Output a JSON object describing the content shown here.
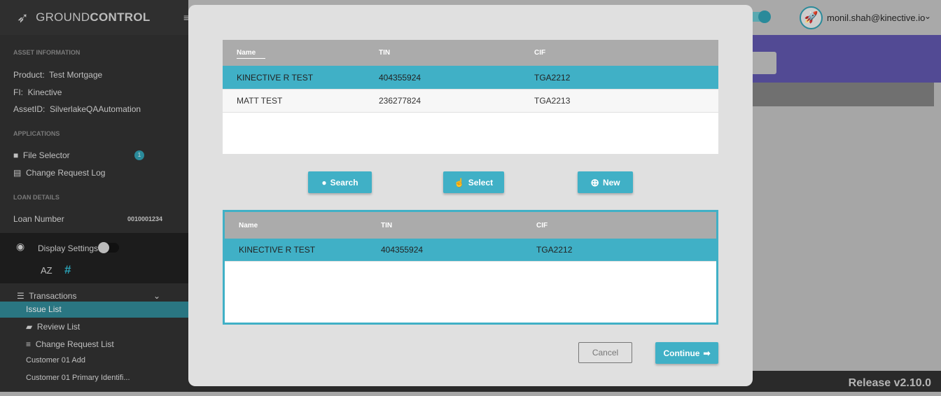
{
  "brand": {
    "prefix": "GROUND",
    "suffix": "CONTROL"
  },
  "sidebar": {
    "asset_heading": "ASSET INFORMATION",
    "product_label": "Product:",
    "product": "Test Mortgage",
    "fi_label": "FI:",
    "fi": "Kinective",
    "asset_label": "AssetID:",
    "asset": "SilverlakeQAAutomation",
    "apps_heading": "APPLICATIONS",
    "file_selector": "File Selector",
    "file_badge": "1",
    "change_log": "Change Request Log",
    "loan_heading": "LOAN DETAILS",
    "loan_label": "Loan Number",
    "loan_value": "0010001234",
    "display_settings": "Display Settings",
    "sort_az": "AZ",
    "hash": "#",
    "transactions": "Transactions",
    "items": [
      {
        "label": "Issue List"
      },
      {
        "label": "Review List"
      },
      {
        "label": "Change Request List"
      },
      {
        "label": "Customer 01 Add"
      },
      {
        "label": "Customer 01 Primary Identifi..."
      }
    ]
  },
  "header": {
    "user": "monil.shah@kinective.io"
  },
  "footer": {
    "release": "Release v2.10.0"
  },
  "modal": {
    "columns": [
      "Name",
      "TIN",
      "CIF"
    ],
    "results": [
      {
        "name": "KINECTIVE R TEST",
        "tin": "404355924",
        "cif": "TGA2212"
      },
      {
        "name": "MATT TEST",
        "tin": "236277824",
        "cif": "TGA2213"
      }
    ],
    "selected": [
      {
        "name": "KINECTIVE R TEST",
        "tin": "404355924",
        "cif": "TGA2212"
      }
    ],
    "buttons": {
      "search": "Search",
      "select": "Select",
      "new": "New",
      "cancel": "Cancel",
      "continue": "Continue"
    }
  },
  "colors": {
    "accent": "#40b0c6",
    "purple": "#524a94"
  }
}
